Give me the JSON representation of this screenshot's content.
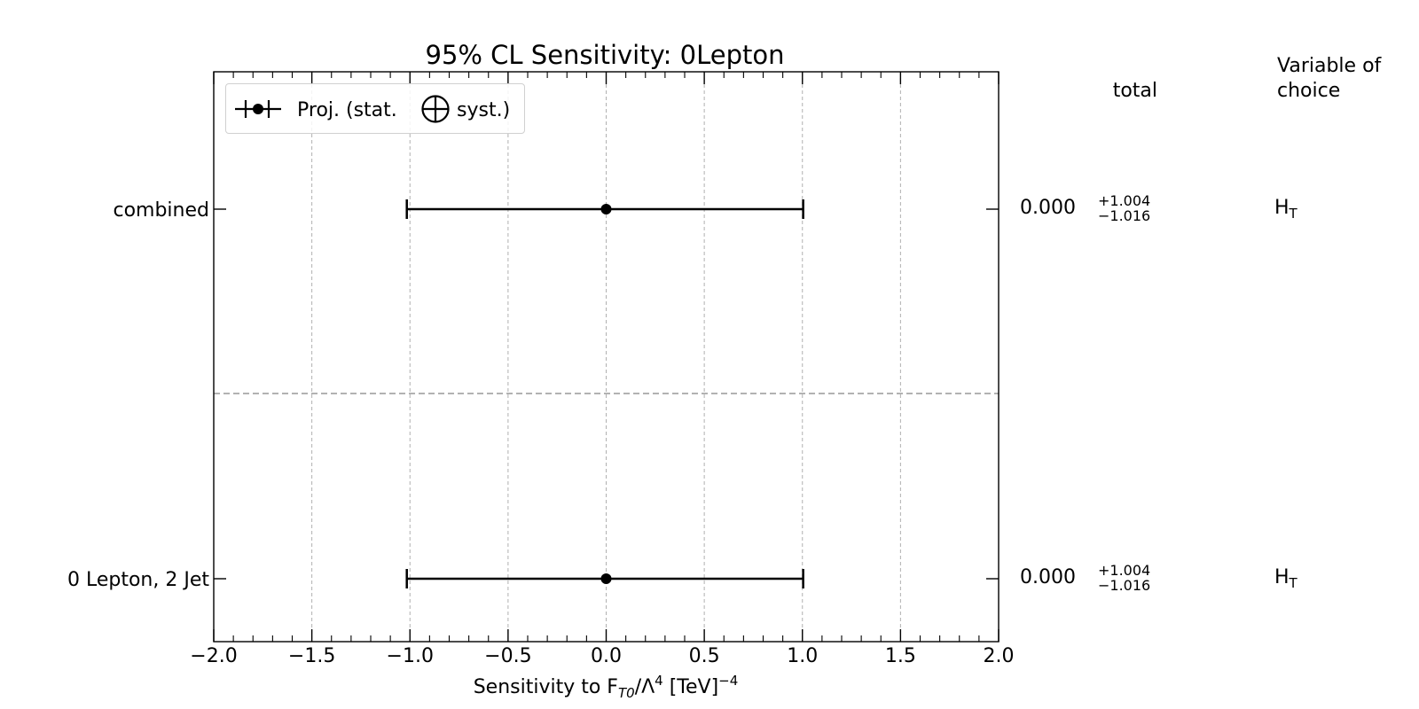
{
  "chart_data": {
    "type": "errorbar",
    "title": "95% CL Sensitivity: 0Lepton",
    "xlabel": "Sensitivity to F_T0/Λ^4 [TeV]^-4",
    "xlim": [
      -2.0,
      2.0
    ],
    "x_ticks": [
      "−2.0",
      "−1.5",
      "−1.0",
      "−0.5",
      "0.0",
      "0.5",
      "1.0",
      "1.5",
      "2.0"
    ],
    "grid": "vertical dashed",
    "legend": {
      "placement": "top-left",
      "label_a": "Proj. (stat.",
      "label_b": "syst.)"
    },
    "column_headers": {
      "total": "total",
      "variable": "Variable of choice",
      "variable_line1": "Variable of",
      "variable_line2": "choice"
    },
    "rows": [
      {
        "label": "combined",
        "central": 0.0,
        "err_plus": 1.004,
        "err_minus": 1.016,
        "value_text": "0.000",
        "plus_text": "+1.004",
        "minus_text": "−1.016",
        "variable": "H_T"
      },
      {
        "label": "0 Lepton, 2 Jet",
        "central": 0.0,
        "err_plus": 1.004,
        "err_minus": 1.016,
        "value_text": "0.000",
        "plus_text": "+1.004",
        "minus_text": "−1.016",
        "variable": "H_T"
      }
    ],
    "colors": {
      "data": "#000000",
      "grid": "#b0b0b0",
      "separator": "#999999"
    }
  }
}
